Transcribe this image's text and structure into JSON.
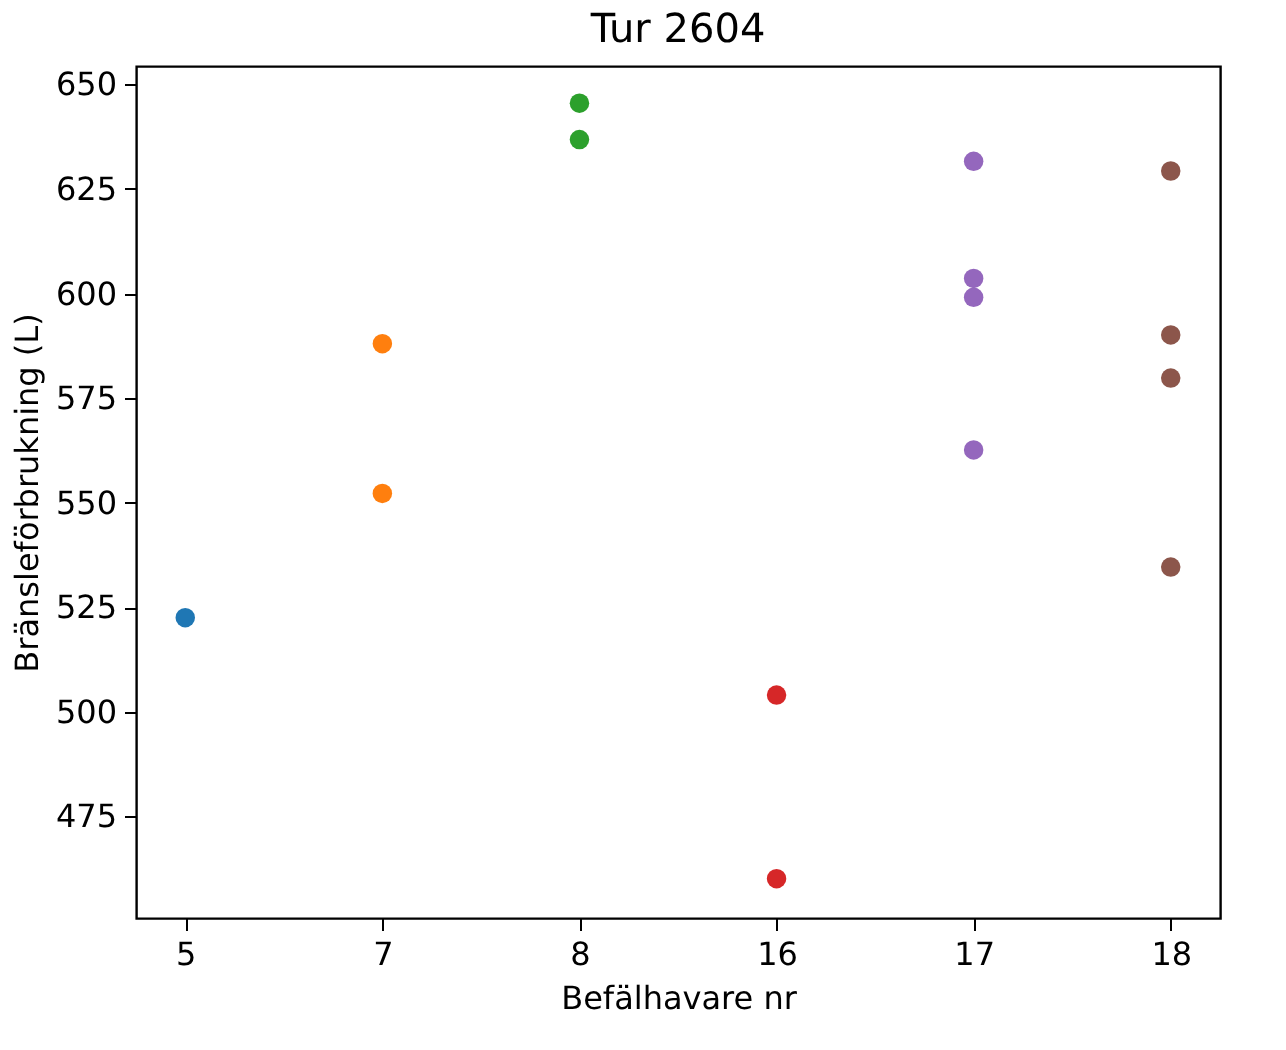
{
  "chart_data": {
    "type": "scatter",
    "title": "Tur 2604",
    "xlabel": "Befälhavare nr",
    "ylabel": "Bränsleförbrukning (L)",
    "categories": [
      "5",
      "7",
      "8",
      "16",
      "17",
      "18"
    ],
    "series": [
      {
        "color": "#1f77b4",
        "x": [
          "5"
        ],
        "values": [
          522.5
        ]
      },
      {
        "color": "#ff7f0e",
        "x": [
          "7",
          "7"
        ],
        "values": [
          588,
          552.2
        ]
      },
      {
        "color": "#2ca02c",
        "x": [
          "8",
          "8"
        ],
        "values": [
          645.5,
          636.8
        ]
      },
      {
        "color": "#d62728",
        "x": [
          "16",
          "16"
        ],
        "values": [
          504,
          460.1
        ]
      },
      {
        "color": "#9467bd",
        "x": [
          "17",
          "17",
          "17",
          "17"
        ],
        "values": [
          631.6,
          603.6,
          599.1,
          562.6
        ]
      },
      {
        "color": "#8c564b",
        "x": [
          "18",
          "18",
          "18",
          "18"
        ],
        "values": [
          629.3,
          590.1,
          579.8,
          534.6
        ]
      }
    ],
    "ylim": [
      450.7,
      654.4
    ],
    "yticks": [
      475,
      500,
      525,
      550,
      575,
      600,
      625,
      650
    ],
    "marker": "circle",
    "grid": false,
    "legend": false
  }
}
